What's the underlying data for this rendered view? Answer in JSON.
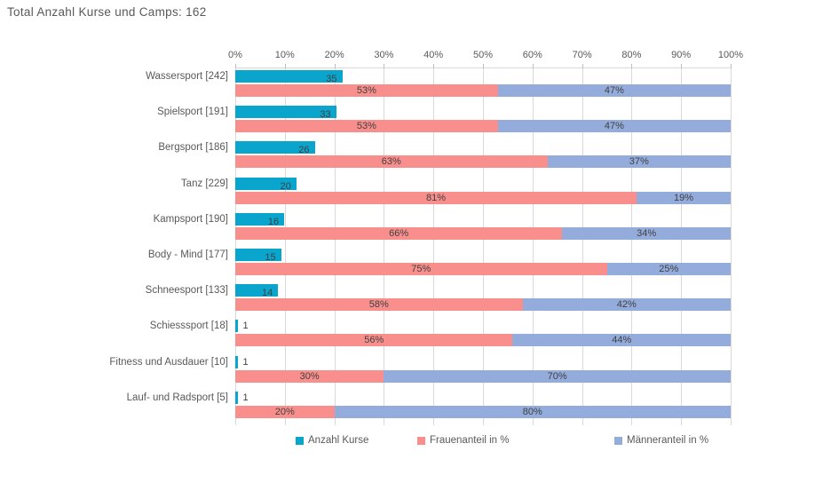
{
  "chart_data": {
    "type": "bar",
    "orientation": "horizontal",
    "title": "Total Anzahl Kurse und Camps: 162",
    "categories": [
      "Wassersport [242]",
      "Spielsport [191]",
      "Bergsport [186]",
      "Tanz [229]",
      "Kampsport [190]",
      "Body - Mind [177]",
      "Schneesport [133]",
      "Schiesssport [18]",
      "Fitness und Ausdauer [10]",
      "Lauf- und Radsport [5]"
    ],
    "series": [
      {
        "name": "Anzahl Kurse",
        "color": "#0AA5CD",
        "values": [
          35,
          33,
          26,
          20,
          16,
          15,
          14,
          1,
          1,
          1
        ],
        "value_axis_max": 162,
        "label_format": "number"
      },
      {
        "name": "Frauenanteil in %",
        "color": "#F98F8D",
        "values": [
          53,
          53,
          63,
          81,
          66,
          75,
          58,
          56,
          30,
          20
        ],
        "label_format": "percent"
      },
      {
        "name": "Männeranteil in %",
        "color": "#93ACDC",
        "values": [
          47,
          47,
          37,
          19,
          34,
          25,
          42,
          44,
          70,
          80
        ],
        "label_format": "percent"
      }
    ],
    "x_axis": {
      "position": "top",
      "min": 0,
      "max": 100,
      "tick_step": 10,
      "ticks": [
        "0%",
        "10%",
        "20%",
        "30%",
        "40%",
        "50%",
        "60%",
        "70%",
        "80%",
        "90%",
        "100%"
      ]
    },
    "legend": {
      "position": "bottom",
      "entries": [
        {
          "label": "Anzahl Kurse",
          "color": "#0AA5CD"
        },
        {
          "label": "Frauenanteil in %",
          "color": "#F98F8D"
        },
        {
          "label": "Männeranteil in %",
          "color": "#93ACDC"
        }
      ]
    },
    "grid": true,
    "colors": {
      "background": "#FFFFFF",
      "gridline": "#D9D9D9",
      "tick_mark": "#BFBFBF",
      "tick_label": "#595959",
      "category_label": "#595959",
      "data_label": "#404040",
      "title": "#595959"
    }
  }
}
